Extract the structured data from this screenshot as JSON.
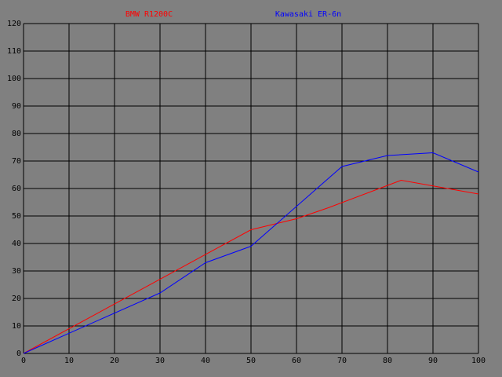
{
  "chart_data": {
    "type": "line",
    "series": [
      {
        "name": "BMW R1200C",
        "color": "#ff0000",
        "x": [
          0,
          50,
          60,
          67,
          83,
          100
        ],
        "values": [
          0,
          45,
          49,
          53,
          63,
          58
        ]
      },
      {
        "name": "Kawasaki ER-6n",
        "color": "#0000ff",
        "x": [
          0,
          30,
          40,
          50,
          70,
          80,
          90,
          100
        ],
        "values": [
          0,
          22,
          33,
          39,
          68,
          72,
          73,
          66
        ]
      }
    ],
    "xlim": [
      0,
      100
    ],
    "xticks": [
      0,
      10,
      20,
      30,
      40,
      50,
      60,
      70,
      80,
      90,
      100
    ],
    "ylim": [
      0,
      120
    ],
    "yticks": [
      0,
      10,
      20,
      30,
      40,
      50,
      60,
      70,
      80,
      90,
      100,
      110,
      120
    ],
    "grid": true,
    "background": "#808080",
    "grid_color": "#000000"
  }
}
